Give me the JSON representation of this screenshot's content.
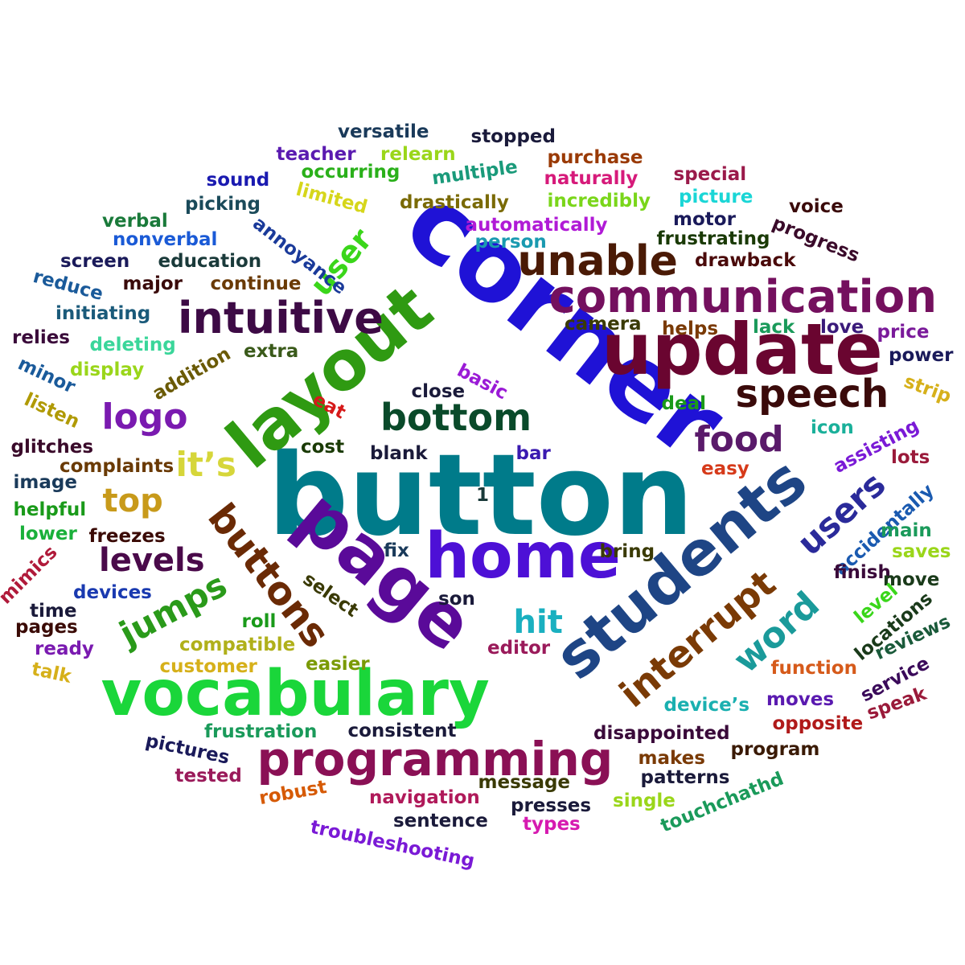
{
  "words": [
    {
      "text": "button",
      "color": "#007b8a"
    },
    {
      "text": "corner",
      "color": "#1f12d6"
    },
    {
      "text": "update",
      "color": "#6a0530"
    },
    {
      "text": "layout",
      "color": "#2f9a12"
    },
    {
      "text": "page",
      "color": "#5a0a99"
    },
    {
      "text": "home",
      "color": "#4d10d6"
    },
    {
      "text": "students",
      "color": "#1e4585"
    },
    {
      "text": "vocabulary",
      "color": "#1ad63a"
    },
    {
      "text": "programming",
      "color": "#8a1055"
    },
    {
      "text": "communication",
      "color": "#74105e"
    },
    {
      "text": "intuitive",
      "color": "#3d0a45"
    },
    {
      "text": "unable",
      "color": "#4a1a05"
    },
    {
      "text": "buttons",
      "color": "#6a2a05"
    },
    {
      "text": "interrupt",
      "color": "#7a3a05"
    },
    {
      "text": "speech",
      "color": "#3a0a0a"
    },
    {
      "text": "users",
      "color": "#2a2a9a"
    },
    {
      "text": "word",
      "color": "#1a9a9a"
    },
    {
      "text": "bottom",
      "color": "#0a4a2a"
    },
    {
      "text": "food",
      "color": "#5a1a6a"
    },
    {
      "text": "logo",
      "color": "#7a1ab0"
    },
    {
      "text": "jumps",
      "color": "#2a9a1a"
    },
    {
      "text": "levels",
      "color": "#4a0a4a"
    },
    {
      "text": "top",
      "color": "#c89a1a"
    },
    {
      "text": "it’s",
      "color": "#d6d63a"
    },
    {
      "text": "user",
      "color": "#3ad61a"
    },
    {
      "text": "hit",
      "color": "#1ab0c0"
    },
    {
      "text": "versatile",
      "color": "#1a3a5a"
    },
    {
      "text": "stopped",
      "color": "#1a1a3a"
    },
    {
      "text": "teacher",
      "color": "#5a1ab0"
    },
    {
      "text": "relearn",
      "color": "#9ad61a"
    },
    {
      "text": "purchase",
      "color": "#9a3a05"
    },
    {
      "text": "occurring",
      "color": "#2ab01a"
    },
    {
      "text": "multiple",
      "color": "#1a9a7a"
    },
    {
      "text": "naturally",
      "color": "#d61a7a"
    },
    {
      "text": "special",
      "color": "#9a1a4a"
    },
    {
      "text": "sound",
      "color": "#1a1ab0"
    },
    {
      "text": "limited",
      "color": "#d6d61a"
    },
    {
      "text": "drastically",
      "color": "#7a6a05"
    },
    {
      "text": "incredibly",
      "color": "#7ad61a"
    },
    {
      "text": "picture",
      "color": "#1ad6d6"
    },
    {
      "text": "voice",
      "color": "#3a0a0a"
    },
    {
      "text": "picking",
      "color": "#1a4a5a"
    },
    {
      "text": "automatically",
      "color": "#b01ad6"
    },
    {
      "text": "motor",
      "color": "#1a1a5a"
    },
    {
      "text": "progress",
      "color": "#3a0a2a"
    },
    {
      "text": "verbal",
      "color": "#1a7a3a"
    },
    {
      "text": "annoyance",
      "color": "#1a3a9a"
    },
    {
      "text": "person",
      "color": "#1a9ab0"
    },
    {
      "text": "frustrating",
      "color": "#1a3a05"
    },
    {
      "text": "nonverbal",
      "color": "#1a5ad6"
    },
    {
      "text": "screen",
      "color": "#1a1a5a"
    },
    {
      "text": "education",
      "color": "#1a3a3a"
    },
    {
      "text": "drawback",
      "color": "#4a0a0a"
    },
    {
      "text": "reduce",
      "color": "#1a5a9a"
    },
    {
      "text": "major",
      "color": "#3a0a0a"
    },
    {
      "text": "continue",
      "color": "#6a3a05"
    },
    {
      "text": "initiating",
      "color": "#1a5a7a"
    },
    {
      "text": "camera",
      "color": "#3a3a05"
    },
    {
      "text": "helps",
      "color": "#7a3a05"
    },
    {
      "text": "lack",
      "color": "#1a9a5a"
    },
    {
      "text": "love",
      "color": "#3a1a7a"
    },
    {
      "text": "price",
      "color": "#7a1a9a"
    },
    {
      "text": "relies",
      "color": "#3a0a3a"
    },
    {
      "text": "deleting",
      "color": "#3ad69a"
    },
    {
      "text": "extra",
      "color": "#3a5a1a"
    },
    {
      "text": "power",
      "color": "#1a1a5a"
    },
    {
      "text": "minor",
      "color": "#1a5a9a"
    },
    {
      "text": "addition",
      "color": "#6a5a05"
    },
    {
      "text": "display",
      "color": "#9ad61a"
    },
    {
      "text": "basic",
      "color": "#9a1ad6"
    },
    {
      "text": "strip",
      "color": "#d6b01a"
    },
    {
      "text": "close",
      "color": "#1a1a3a"
    },
    {
      "text": "listen",
      "color": "#b09a05"
    },
    {
      "text": "eat",
      "color": "#d61a1a"
    },
    {
      "text": "deal",
      "color": "#1a9a1a"
    },
    {
      "text": "glitches",
      "color": "#3a0a2a"
    },
    {
      "text": "cost",
      "color": "#1a3a05"
    },
    {
      "text": "blank",
      "color": "#1a1a3a"
    },
    {
      "text": "bar",
      "color": "#3a1ab0"
    },
    {
      "text": "icon",
      "color": "#1ab09a"
    },
    {
      "text": "assisting",
      "color": "#7a1ad6"
    },
    {
      "text": "complaints",
      "color": "#6a3a05"
    },
    {
      "text": "easy",
      "color": "#d63a1a"
    },
    {
      "text": "lots",
      "color": "#9a1a3a"
    },
    {
      "text": "image",
      "color": "#1a3a5a"
    },
    {
      "text": "1",
      "color": "#1a3a3a"
    },
    {
      "text": "accidentally",
      "color": "#1a5ab0"
    },
    {
      "text": "helpful",
      "color": "#1a9a1a"
    },
    {
      "text": "main",
      "color": "#1a9a5a"
    },
    {
      "text": "lower",
      "color": "#1ab03a"
    },
    {
      "text": "freezes",
      "color": "#3a0a05"
    },
    {
      "text": "fix",
      "color": "#1a3a5a"
    },
    {
      "text": "bring",
      "color": "#3a3a05"
    },
    {
      "text": "saves",
      "color": "#9ad61a"
    },
    {
      "text": "mimics",
      "color": "#b01a3a"
    },
    {
      "text": "finish",
      "color": "#3a0a3a"
    },
    {
      "text": "move",
      "color": "#1a3a1a"
    },
    {
      "text": "devices",
      "color": "#1a3ab0"
    },
    {
      "text": "select",
      "color": "#3a3a05"
    },
    {
      "text": "son",
      "color": "#1a1a3a"
    },
    {
      "text": "level",
      "color": "#3ad61a"
    },
    {
      "text": "locations",
      "color": "#1a3a1a"
    },
    {
      "text": "time",
      "color": "#1a1a3a"
    },
    {
      "text": "roll",
      "color": "#1a9a1a"
    },
    {
      "text": "pages",
      "color": "#3a0a05"
    },
    {
      "text": "reviews",
      "color": "#1a5a3a"
    },
    {
      "text": "ready",
      "color": "#7a1ab0"
    },
    {
      "text": "compatible",
      "color": "#b0b01a"
    },
    {
      "text": "editor",
      "color": "#9a1a5a"
    },
    {
      "text": "customer",
      "color": "#d6b01a"
    },
    {
      "text": "easier",
      "color": "#7a9a05"
    },
    {
      "text": "function",
      "color": "#d65a1a"
    },
    {
      "text": "service",
      "color": "#3a0a5a"
    },
    {
      "text": "talk",
      "color": "#d6b01a"
    },
    {
      "text": "device’s",
      "color": "#1ab0b0"
    },
    {
      "text": "moves",
      "color": "#5a1ab0"
    },
    {
      "text": "speak",
      "color": "#9a1a3a"
    },
    {
      "text": "frustration",
      "color": "#1a9a5a"
    },
    {
      "text": "consistent",
      "color": "#1a1a3a"
    },
    {
      "text": "disappointed",
      "color": "#3a0a3a"
    },
    {
      "text": "opposite",
      "color": "#b01a1a"
    },
    {
      "text": "pictures",
      "color": "#1a1a5a"
    },
    {
      "text": "makes",
      "color": "#7a3a05"
    },
    {
      "text": "program",
      "color": "#3a1a05"
    },
    {
      "text": "tested",
      "color": "#9a1a5a"
    },
    {
      "text": "message",
      "color": "#3a3a05"
    },
    {
      "text": "patterns",
      "color": "#1a1a3a"
    },
    {
      "text": "robust",
      "color": "#d65a05"
    },
    {
      "text": "touchchathd",
      "color": "#1a9a5a"
    },
    {
      "text": "navigation",
      "color": "#b01a5a"
    },
    {
      "text": "presses",
      "color": "#1a1a3a"
    },
    {
      "text": "single",
      "color": "#9ad61a"
    },
    {
      "text": "sentence",
      "color": "#1a1a3a"
    },
    {
      "text": "types",
      "color": "#d61ab0"
    },
    {
      "text": "troubleshooting",
      "color": "#7a1ad6"
    }
  ]
}
